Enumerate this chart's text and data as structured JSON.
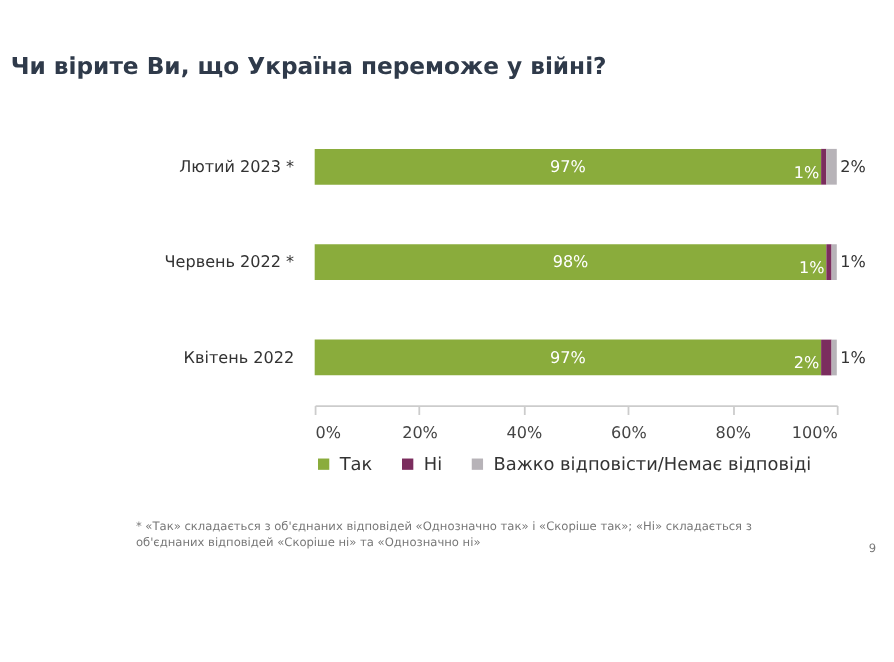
{
  "chart_data": {
    "type": "bar",
    "orientation": "horizontal",
    "stacked": true,
    "title": "Чи вірите Ви, що Україна переможе у війні?",
    "categories": [
      "Лютий 2023 *",
      "Червень 2022 *",
      "Квітень 2022"
    ],
    "series": [
      {
        "name": "Так",
        "color": "#8aac3c",
        "values": [
          97,
          98,
          97
        ],
        "value_labels": [
          "97%",
          "98%",
          "97%"
        ]
      },
      {
        "name": "Ні",
        "color": "#7b2d5e",
        "values": [
          1,
          1,
          2
        ],
        "value_labels": [
          "1%",
          "1%",
          "2%"
        ]
      },
      {
        "name": "Важко відповісти/Немає відповіді",
        "color": "#b7b3b8",
        "values": [
          2,
          1,
          1
        ],
        "value_labels": [
          "2%",
          "1%",
          "1%"
        ]
      }
    ],
    "xlim": [
      0,
      100
    ],
    "xticks": [
      {
        "value": 0,
        "label": "0%"
      },
      {
        "value": 20,
        "label": "20%"
      },
      {
        "value": 40,
        "label": "40%"
      },
      {
        "value": 60,
        "label": "60%"
      },
      {
        "value": 80,
        "label": "80%"
      },
      {
        "value": 100,
        "label": "100%"
      }
    ],
    "grid": false,
    "legend": "bottom",
    "annotations": [
      "* «Так» складається з об'єднаних відповідей «Однозначно так» і «Скоріше так»; «Ні» складається з об'єднаних відповідей «Скоріше ні» та «Однозначно ні»",
      "9"
    ]
  }
}
